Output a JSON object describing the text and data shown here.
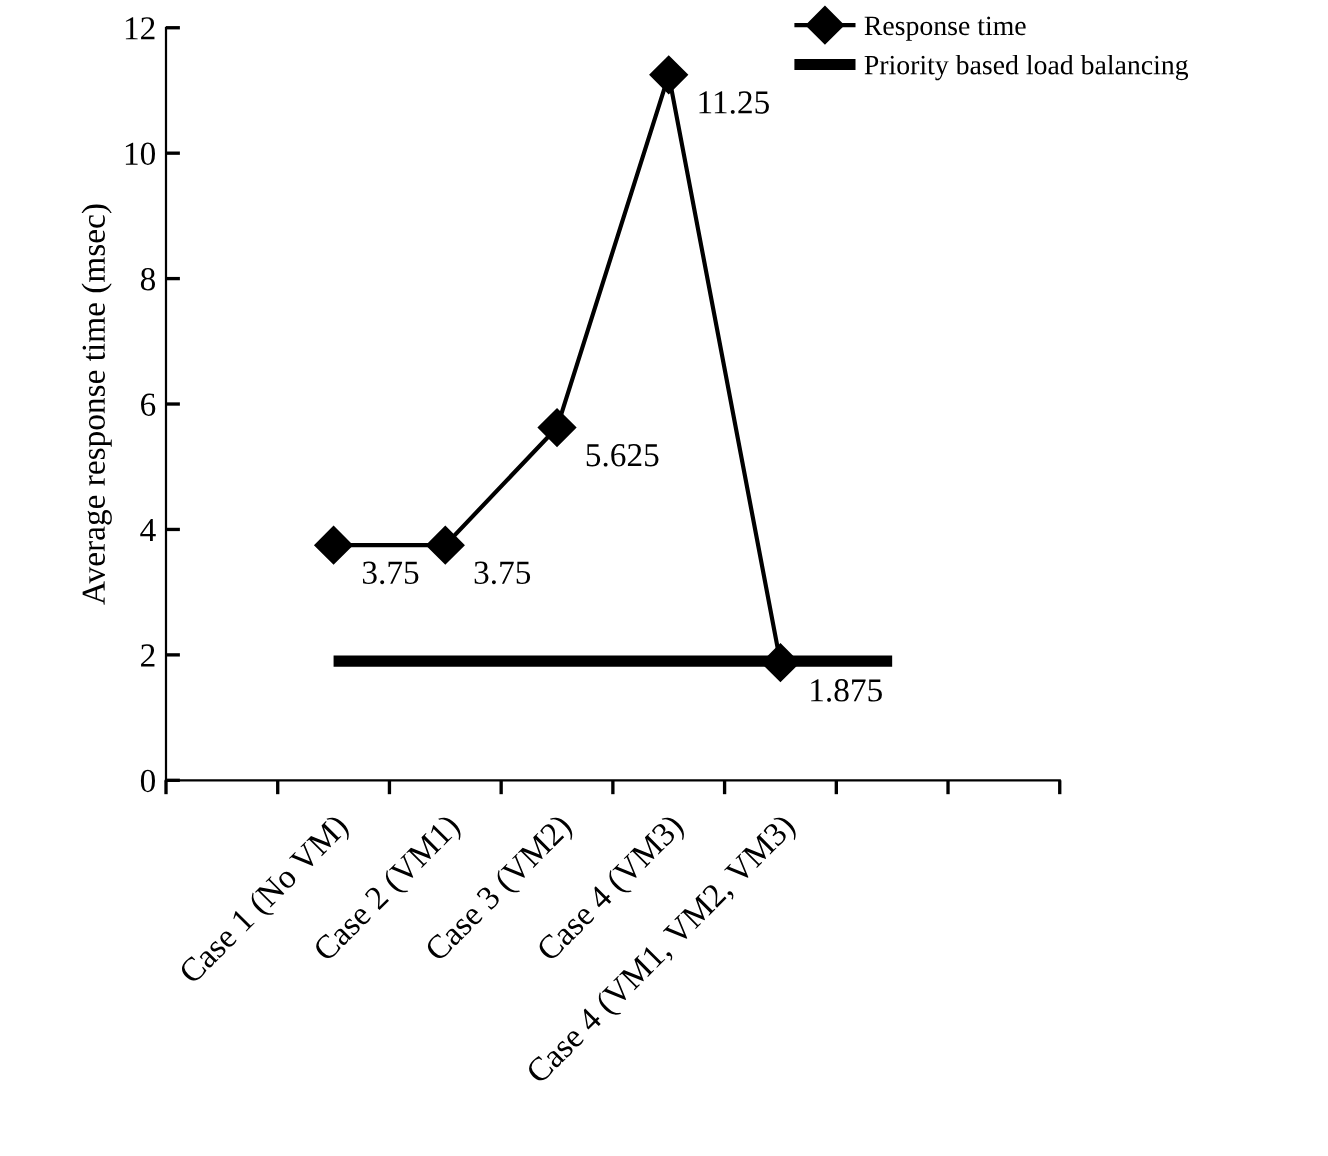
{
  "chart_data": {
    "type": "line",
    "ylabel": "Average response time (msec)",
    "categories": [
      null,
      "Case 1 (No VM)",
      "Case 2 (VM1)",
      "Case 3 (VM2)",
      "Case 4 (VM3)",
      "Case 4 (VM1, VM2, VM3)",
      null,
      null
    ],
    "series": [
      {
        "name": "Response time",
        "color": "#000000",
        "marker": "diamond",
        "values": [
          null,
          3.75,
          3.75,
          5.625,
          11.25,
          1.875,
          null,
          null
        ],
        "value_labels": [
          null,
          "3.75",
          "3.75",
          "5.625",
          "11.25",
          "1.875",
          null,
          null
        ]
      },
      {
        "name": "Priority based load balancing",
        "color": "#000000",
        "marker": "none",
        "values": [
          null,
          1.9,
          1.9,
          1.9,
          1.9,
          1.9,
          1.9,
          null
        ]
      }
    ],
    "ylim": [
      0,
      12
    ],
    "yticks": [
      0,
      2,
      4,
      6,
      8,
      10,
      12
    ],
    "grid": false,
    "legend": "top right",
    "line_style": "solid"
  }
}
